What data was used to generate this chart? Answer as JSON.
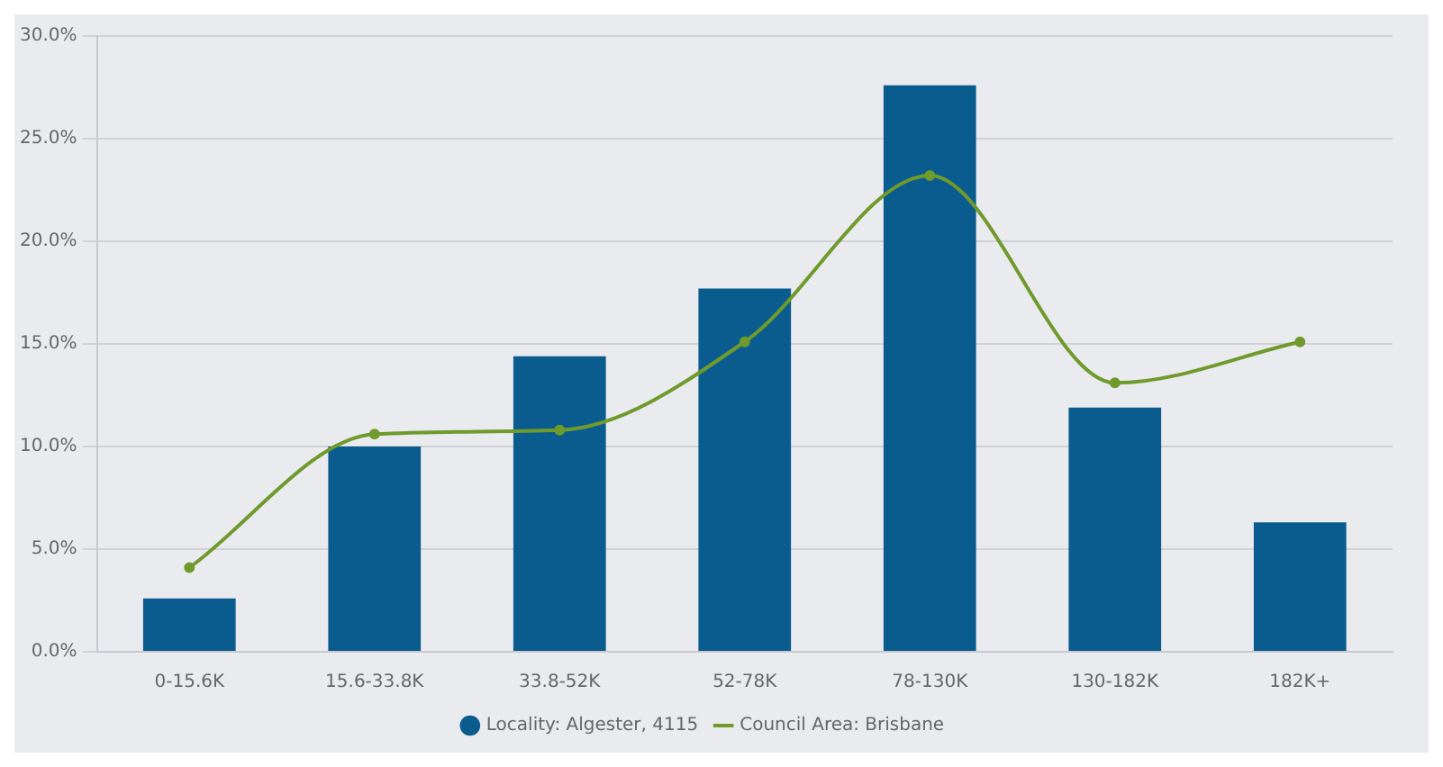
{
  "chart_data": {
    "type": "bar",
    "categories": [
      "0-15.6K",
      "15.6-33.8K",
      "33.8-52K",
      "52-78K",
      "78-130K",
      "130-182K",
      "182K+"
    ],
    "series": [
      {
        "name": "Locality: Algester, 4115",
        "color": "#0b5c8e",
        "values": [
          2.6,
          10.0,
          14.4,
          17.7,
          27.6,
          11.9,
          6.3
        ]
      },
      {
        "name": "Council Area: Brisbane",
        "type": "line",
        "color": "#6f9a2c",
        "values": [
          4.1,
          10.6,
          10.8,
          15.1,
          23.2,
          13.1,
          15.1
        ]
      }
    ],
    "ylim": [
      0,
      30
    ],
    "yticks": [
      {
        "value": 0,
        "label": "0.0%"
      },
      {
        "value": 5,
        "label": "5.0%"
      },
      {
        "value": 10,
        "label": "10.0%"
      },
      {
        "value": 15,
        "label": "15.0%"
      },
      {
        "value": 20,
        "label": "20.0%"
      },
      {
        "value": 25,
        "label": "25.0%"
      },
      {
        "value": 30,
        "label": "30.0%"
      }
    ],
    "grid": "y",
    "legend": "bottom",
    "marker": "circle"
  }
}
